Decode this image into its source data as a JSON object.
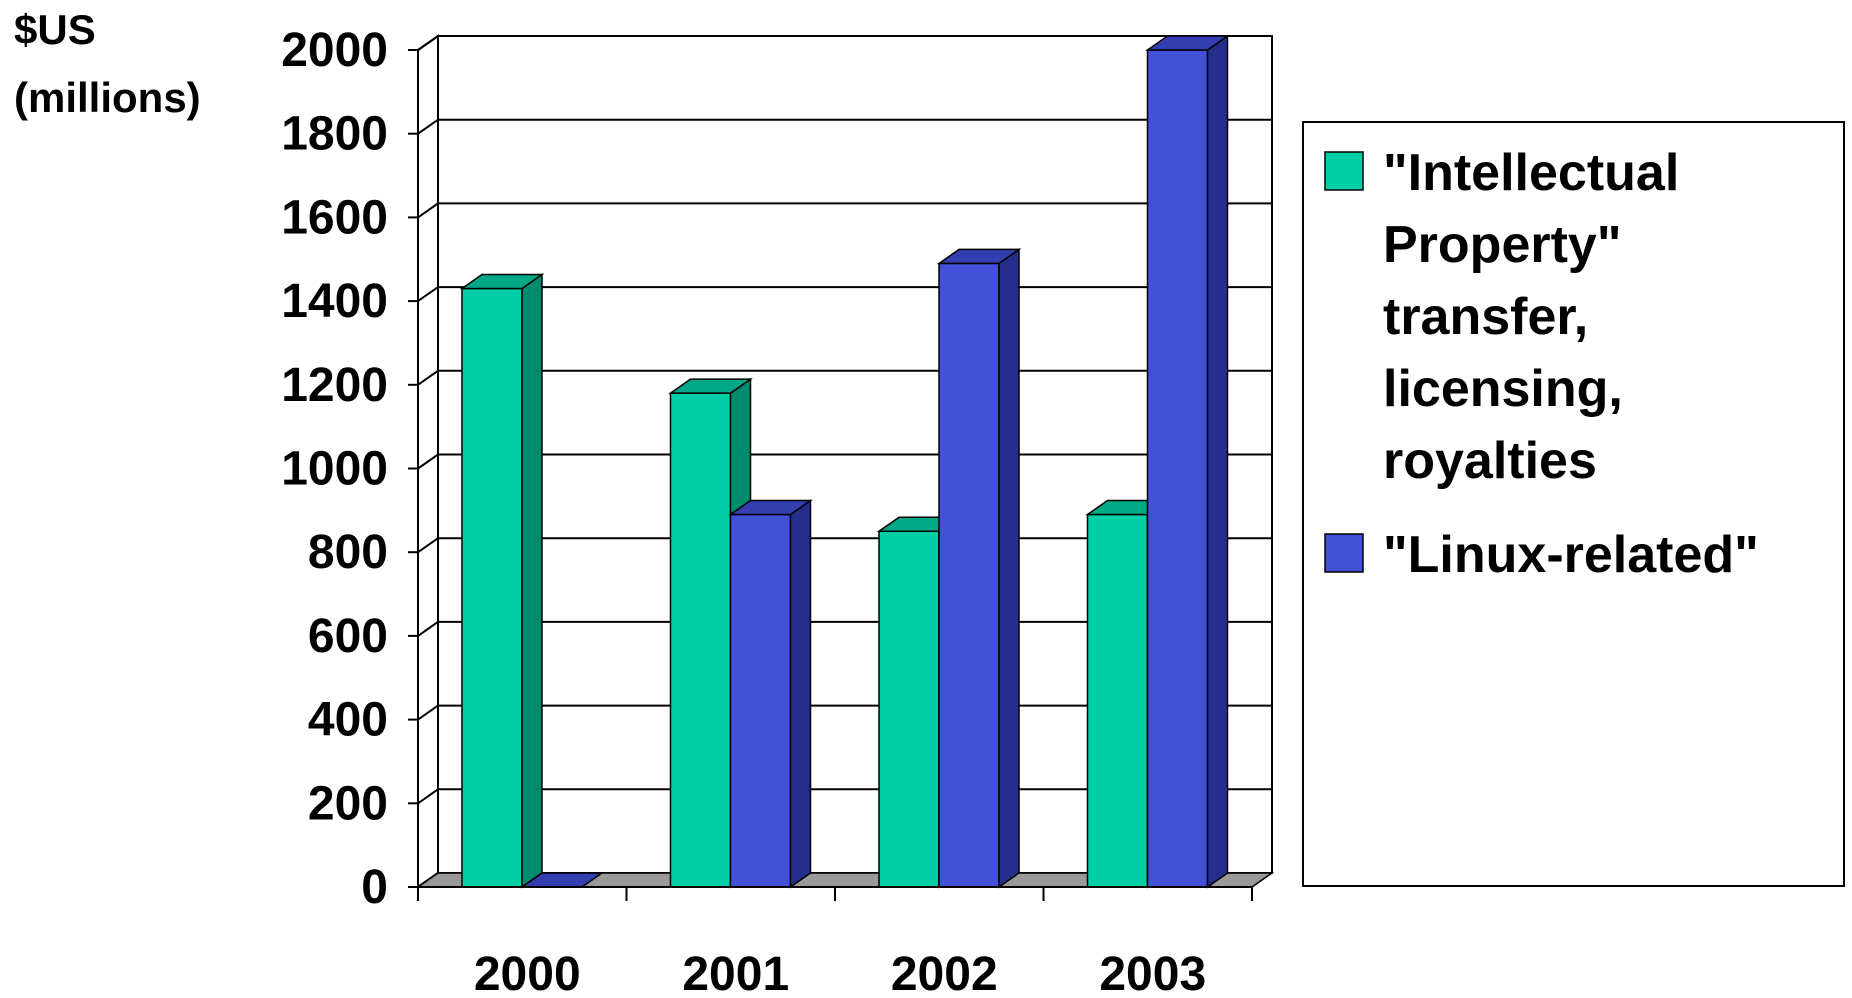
{
  "chart_data": {
    "type": "bar",
    "ylabel_lines": [
      "$US",
      "(millions)"
    ],
    "categories": [
      "2000",
      "2001",
      "2002",
      "2003"
    ],
    "ylim": [
      0,
      2000
    ],
    "yticks": [
      "0",
      "200",
      "400",
      "600",
      "800",
      "1000",
      "1200",
      "1400",
      "1600",
      "1800",
      "2000"
    ],
    "grid": true,
    "legend_position": "right",
    "series": [
      {
        "name_lines": [
          "\"Intellectual",
          "Property\"",
          "transfer,",
          "licensing,",
          "royalties"
        ],
        "values": [
          1430,
          1180,
          850,
          890
        ],
        "color": "#00cfa8",
        "side_color": "#008a6e",
        "top_color": "#00a888"
      },
      {
        "name_lines": [
          "\"Linux-related\""
        ],
        "values": [
          0,
          890,
          1490,
          2000
        ],
        "color": "#4350d8",
        "side_color": "#262e8c",
        "top_color": "#333fb0"
      }
    ],
    "floor_color": "#999999"
  }
}
